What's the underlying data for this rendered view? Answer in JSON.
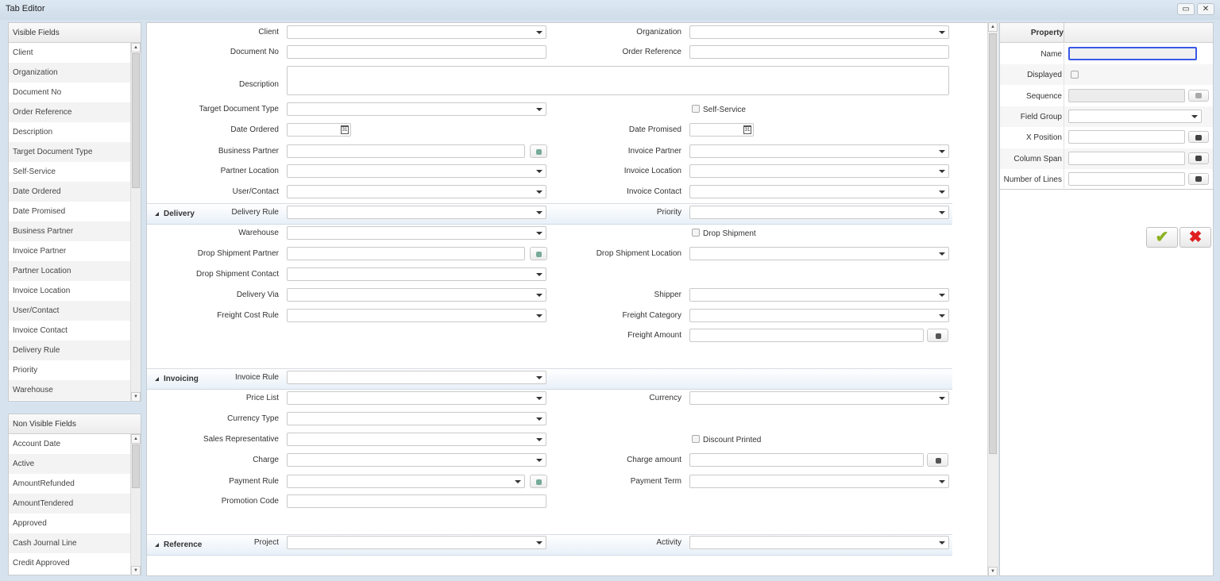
{
  "window": {
    "title": "Tab Editor",
    "maximize_icon": "maximize-icon",
    "close_icon": "close-icon"
  },
  "visible_fields": {
    "header": "Visible Fields",
    "items": [
      "Client",
      "Organization",
      "Document No",
      "Order Reference",
      "Description",
      "Target Document Type",
      "Self-Service",
      "Date Ordered",
      "Date Promised",
      "Business Partner",
      "Invoice Partner",
      "Partner Location",
      "Invoice Location",
      "User/Contact",
      "Invoice Contact",
      "Delivery Rule",
      "Priority",
      "Warehouse"
    ]
  },
  "non_visible_fields": {
    "header": "Non Visible Fields",
    "items": [
      "Account Date",
      "Active",
      "AmountRefunded",
      "AmountTendered",
      "Approved",
      "Cash Journal Line",
      "Credit Approved"
    ]
  },
  "form": {
    "sections": [
      {
        "title": "",
        "rows": [
          {
            "left": {
              "label": "Client",
              "type": "select"
            },
            "right": {
              "label": "Organization",
              "type": "select"
            }
          },
          {
            "left": {
              "label": "Document No",
              "type": "text"
            },
            "right": {
              "label": "Order Reference",
              "type": "text"
            }
          },
          {
            "left": {
              "label": "Description",
              "type": "textarea"
            }
          },
          {
            "left": {
              "label": "Target Document Type",
              "type": "select"
            },
            "right": {
              "label": "Self-Service",
              "type": "checkbox",
              "checked": false
            }
          },
          {
            "left": {
              "label": "Date Ordered",
              "type": "date"
            },
            "right": {
              "label": "Date Promised",
              "type": "date"
            }
          },
          {
            "left": {
              "label": "Business Partner",
              "type": "search"
            },
            "right": {
              "label": "Invoice Partner",
              "type": "select"
            }
          },
          {
            "left": {
              "label": "Partner Location",
              "type": "select"
            },
            "right": {
              "label": "Invoice Location",
              "type": "select"
            }
          },
          {
            "left": {
              "label": "User/Contact",
              "type": "select"
            },
            "right": {
              "label": "Invoice Contact",
              "type": "select"
            }
          }
        ]
      },
      {
        "title": "Delivery",
        "rows": [
          {
            "left": {
              "label": "Delivery Rule",
              "type": "select"
            },
            "right": {
              "label": "Priority",
              "type": "select"
            }
          },
          {
            "left": {
              "label": "Warehouse",
              "type": "select"
            },
            "right": {
              "label": "Drop Shipment",
              "type": "checkbox",
              "checked": false
            }
          },
          {
            "left": {
              "label": "Drop Shipment Partner",
              "type": "search"
            },
            "right": {
              "label": "Drop Shipment Location",
              "type": "select"
            }
          },
          {
            "left": {
              "label": "Drop Shipment Contact",
              "type": "select"
            }
          },
          {
            "left": {
              "label": "Delivery Via",
              "type": "select"
            },
            "right": {
              "label": "Shipper",
              "type": "select"
            }
          },
          {
            "left": {
              "label": "Freight Cost Rule",
              "type": "select"
            },
            "right": {
              "label": "Freight Category",
              "type": "select"
            }
          },
          {
            "right": {
              "label": "Freight Amount",
              "type": "number"
            }
          }
        ]
      },
      {
        "title": "Invoicing",
        "rows": [
          {
            "left": {
              "label": "Invoice Rule",
              "type": "select"
            }
          },
          {
            "left": {
              "label": "Price List",
              "type": "select"
            },
            "right": {
              "label": "Currency",
              "type": "select"
            }
          },
          {
            "left": {
              "label": "Currency Type",
              "type": "select"
            }
          },
          {
            "left": {
              "label": "Sales Representative",
              "type": "select"
            },
            "right": {
              "label": "Discount Printed",
              "type": "checkbox",
              "checked": false
            }
          },
          {
            "left": {
              "label": "Charge",
              "type": "select"
            },
            "right": {
              "label": "Charge amount",
              "type": "number"
            }
          },
          {
            "left": {
              "label": "Payment Rule",
              "type": "selectbtn"
            },
            "right": {
              "label": "Payment Term",
              "type": "select"
            }
          },
          {
            "left": {
              "label": "Promotion Code",
              "type": "text"
            }
          }
        ]
      },
      {
        "title": "Reference",
        "rows": [
          {
            "left": {
              "label": "Project",
              "type": "select"
            },
            "right": {
              "label": "Activity",
              "type": "select"
            }
          }
        ]
      }
    ]
  },
  "properties": {
    "header": "Property",
    "rows": [
      {
        "label": "Name",
        "type": "text-focused",
        "value": ""
      },
      {
        "label": "Displayed",
        "type": "checkbox",
        "checked": false
      },
      {
        "label": "Sequence",
        "type": "number-disabled",
        "value": ""
      },
      {
        "label": "Field Group",
        "type": "select",
        "value": ""
      },
      {
        "label": "X Position",
        "type": "number",
        "value": ""
      },
      {
        "label": "Column Span",
        "type": "number",
        "value": ""
      },
      {
        "label": "Number of Lines",
        "type": "number",
        "value": ""
      }
    ],
    "ok_icon": "checkmark-icon",
    "cancel_icon": "red-x-icon",
    "ok_color": "#8cb21e",
    "cancel_color": "#e02020",
    "focus_color": "#3a58e6"
  }
}
